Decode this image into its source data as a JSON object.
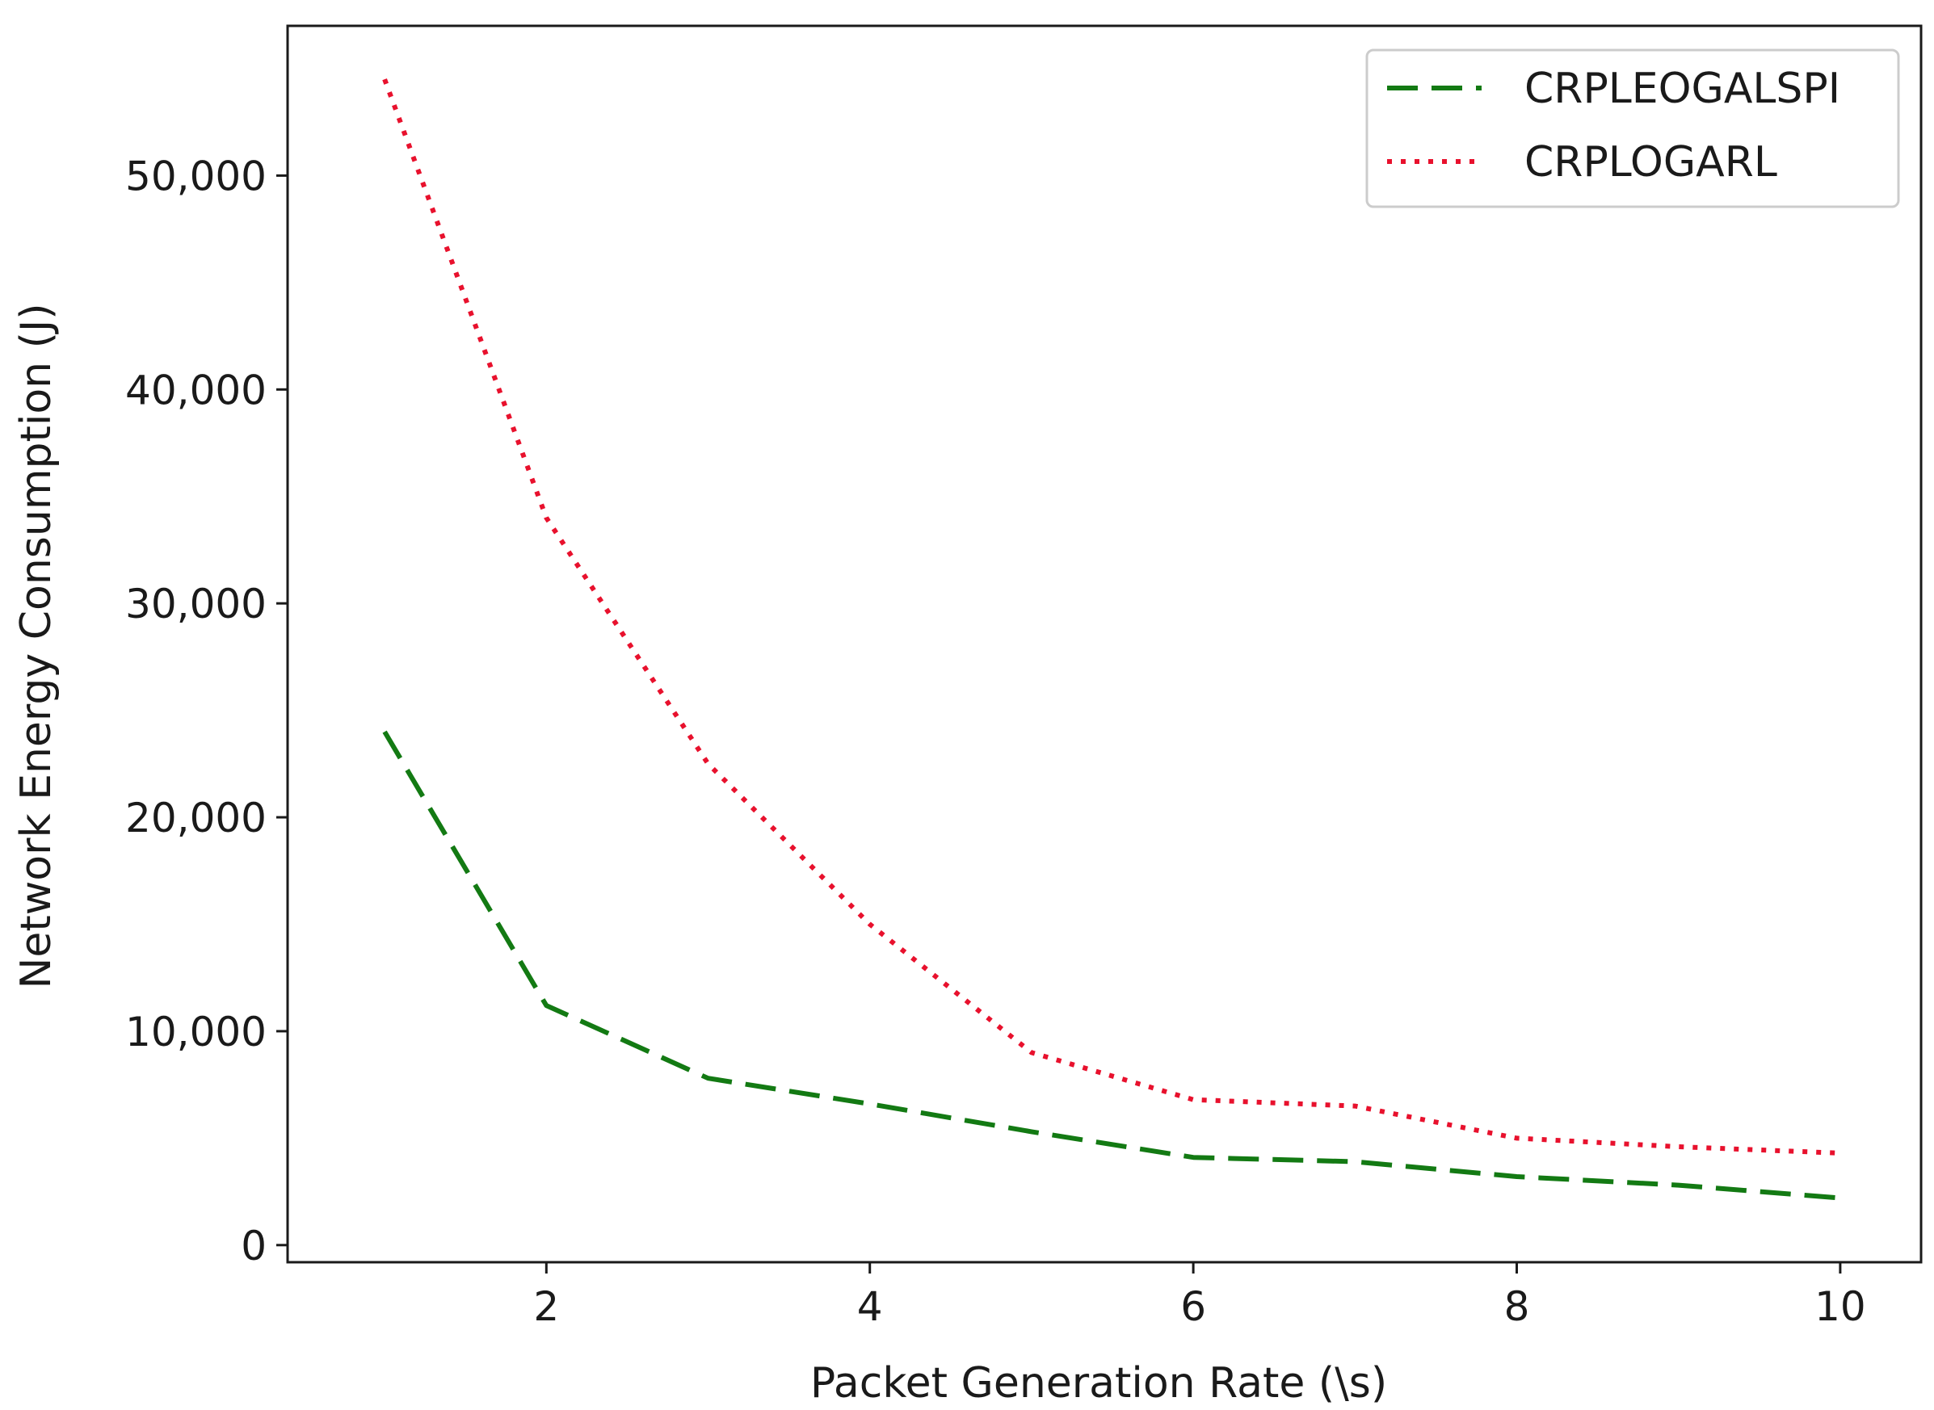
{
  "chart_data": {
    "type": "line",
    "title": "",
    "xlabel": "Packet Generation Rate (\\s)",
    "ylabel": "Network Energy Consumption (J)",
    "xlim": [
      0.4,
      10.5
    ],
    "ylim": [
      -800,
      57000
    ],
    "x_ticks": [
      2,
      4,
      6,
      8,
      10
    ],
    "x_tick_labels": [
      "2",
      "4",
      "6",
      "8",
      "10"
    ],
    "y_ticks": [
      0,
      10000,
      20000,
      30000,
      40000,
      50000
    ],
    "y_tick_labels": [
      "0",
      "10,000",
      "20,000",
      "30,000",
      "40,000",
      "50,000"
    ],
    "grid": false,
    "legend_position": "top-right",
    "x": [
      1,
      2,
      3,
      4,
      5,
      6,
      7,
      8,
      9,
      10
    ],
    "series": [
      {
        "name": "CRPLEOGALSPI",
        "color": "#137a13",
        "line_style": "dashed",
        "values": [
          24000,
          11200,
          7800,
          6600,
          5300,
          4100,
          3900,
          3200,
          2800,
          2200
        ]
      },
      {
        "name": "CRPLOGARL",
        "color": "#e8112d",
        "line_style": "dotted",
        "values": [
          54500,
          34000,
          22500,
          15000,
          9000,
          6800,
          6500,
          5000,
          4600,
          4300
        ]
      }
    ]
  }
}
